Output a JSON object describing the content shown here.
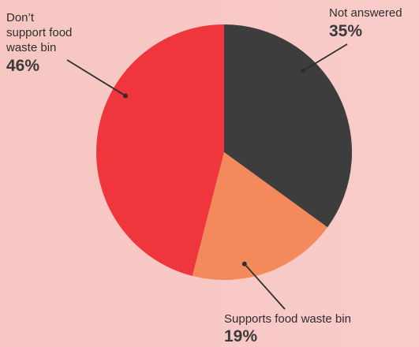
{
  "chart_data": {
    "type": "pie",
    "title": "",
    "slices": [
      {
        "label": "Not answered",
        "value": 35,
        "value_label": "35%",
        "color": "#3d3d3d"
      },
      {
        "label": "Supports food waste bin",
        "value": 19,
        "value_label": "19%",
        "color": "#f48a5c"
      },
      {
        "label": "Don’t support food waste bin",
        "value": 46,
        "value_label": "46%",
        "color": "#ee363c"
      }
    ],
    "start_angle": "12 o'clock",
    "direction": "clockwise",
    "legend": "none",
    "label_lines": {
      "left": [
        "Don’t",
        "support food",
        "waste bin"
      ]
    }
  }
}
